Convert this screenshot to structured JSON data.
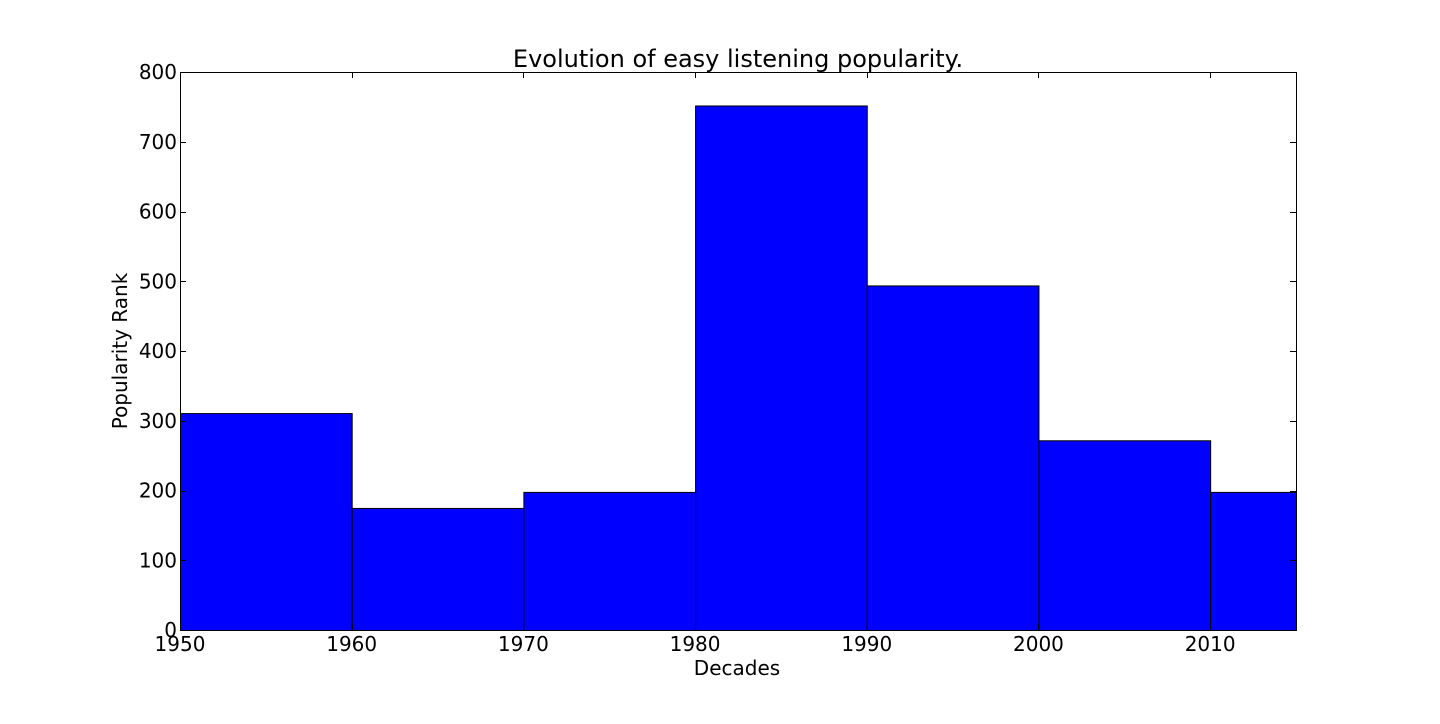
{
  "chart_data": {
    "type": "bar",
    "title": "Evolution of easy listening popularity.",
    "xlabel": "Decades",
    "ylabel": "Popularity Rank",
    "bins": [
      {
        "start": 1950,
        "end": 1960,
        "value": 311
      },
      {
        "start": 1960,
        "end": 1970,
        "value": 175
      },
      {
        "start": 1970,
        "end": 1980,
        "value": 198
      },
      {
        "start": 1980,
        "end": 1990,
        "value": 752
      },
      {
        "start": 1990,
        "end": 2000,
        "value": 494
      },
      {
        "start": 2000,
        "end": 2010,
        "value": 272
      },
      {
        "start": 2010,
        "end": 2015,
        "value": 198
      }
    ],
    "xlim": [
      1950,
      2015
    ],
    "ylim": [
      0,
      800
    ],
    "xticks": [
      1950,
      1960,
      1970,
      1980,
      1990,
      2000,
      2010
    ],
    "yticks": [
      0,
      100,
      200,
      300,
      400,
      500,
      600,
      700,
      800
    ],
    "bar_color": "#0000ff",
    "edge_color": "#000000",
    "grid": false,
    "legend": "none"
  }
}
